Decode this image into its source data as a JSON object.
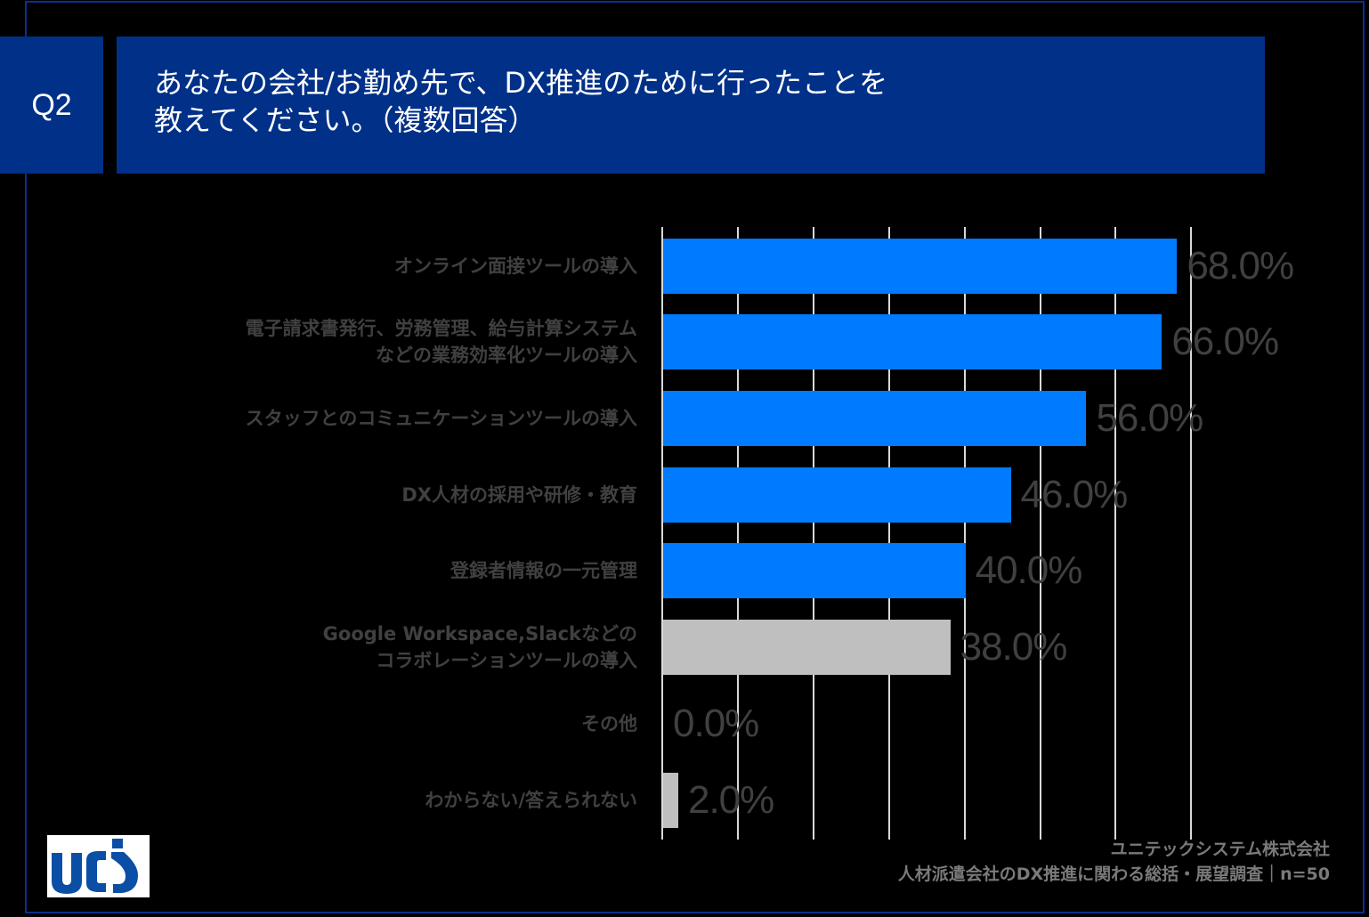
{
  "header": {
    "question_number": "Q2",
    "title_line1": "あなたの会社/お勤め先で、DX推進のために行ったことを",
    "title_line2": "教えてください。（複数回答）"
  },
  "colors": {
    "header_bg": "#003087",
    "frame": "#0b2e8f",
    "bar_highlight": "#007bff",
    "bar_gray": "#bfbfbf",
    "label_text": "#404040",
    "gridline": "#d9d9d9"
  },
  "chart_data": {
    "type": "bar",
    "orientation": "horizontal",
    "title": "あなたの会社/お勤め先で、DX推進のために行ったことを教えてください。（複数回答）",
    "xlabel": "",
    "ylabel": "",
    "xlim": [
      0,
      70
    ],
    "grid": true,
    "gridline_values": [
      0,
      10,
      20,
      30,
      40,
      50,
      60,
      70
    ],
    "categories": [
      "オンライン面接ツールの導入",
      "電子請求書発行、労務管理、給与計算システムなどの業務効率化ツールの導入",
      "スタッフとのコミュニケーションツールの導入",
      "DX人材の採用や研修・教育",
      "登録者情報の一元管理",
      "Google Workspace,Slackなどのコラボレーションツールの導入",
      "その他",
      "わからない/答えられない"
    ],
    "values": [
      68.0,
      66.0,
      56.0,
      46.0,
      40.0,
      38.0,
      0.0,
      2.0
    ],
    "value_labels": [
      "68.0%",
      "66.0%",
      "56.0%",
      "46.0%",
      "40.0%",
      "38.0%",
      "0.0%",
      "2.0%"
    ],
    "bar_colors": [
      "#007bff",
      "#007bff",
      "#007bff",
      "#007bff",
      "#007bff",
      "#bfbfbf",
      "#bfbfbf",
      "#bfbfbf"
    ],
    "unit": "%",
    "n": 50
  },
  "labels": [
    {
      "line1": "オンライン面接ツールの導入",
      "line2": ""
    },
    {
      "line1": "電子請求書発行、労務管理、給与計算システム",
      "line2": "などの業務効率化ツールの導入"
    },
    {
      "line1": "スタッフとのコミュニケーションツールの導入",
      "line2": ""
    },
    {
      "line1": "DX人材の採用や研修・教育",
      "line2": ""
    },
    {
      "line1": "登録者情報の一元管理",
      "line2": ""
    },
    {
      "line1": "Google Workspace,Slackなどの",
      "line2": "コラボレーションツールの導入"
    },
    {
      "line1": "その他",
      "line2": ""
    },
    {
      "line1": "わからない/答えられない",
      "line2": ""
    }
  ],
  "logo": {
    "text": "UCS",
    "icon": "ucs-logo-icon"
  },
  "footer": {
    "company": "ユニテックシステム株式会社",
    "survey": "人材派遣会社のDX推進に関わる総括・展望調査｜n=50"
  }
}
